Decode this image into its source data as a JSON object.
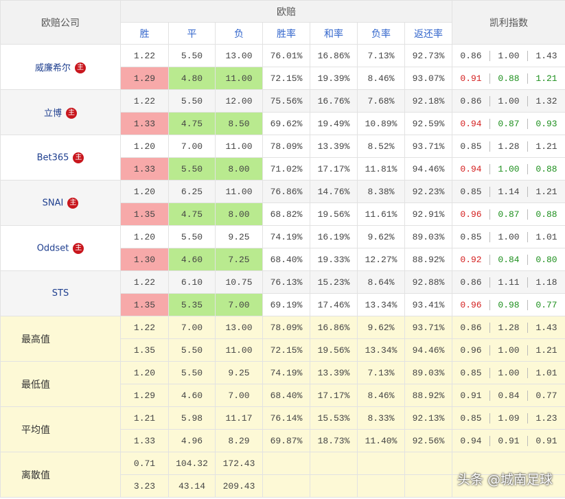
{
  "header": {
    "company": "欧赔公司",
    "odds": "欧赔",
    "kelly": "凯利指数",
    "columns": [
      "胜",
      "平",
      "负",
      "胜率",
      "和率",
      "负率",
      "返还率"
    ]
  },
  "companies": [
    {
      "name": "威廉希尔",
      "badge": "主",
      "rows": [
        {
          "odds": [
            "1.22",
            "5.50",
            "13.00",
            "76.01%",
            "16.86%",
            "7.13%",
            "92.73%"
          ],
          "kelly": [
            "0.86",
            "1.00",
            "1.43"
          ]
        },
        {
          "odds": [
            "1.29",
            "4.80",
            "11.00",
            "72.15%",
            "19.39%",
            "8.46%",
            "93.07%"
          ],
          "kelly": [
            "0.91",
            "0.88",
            "1.21"
          ]
        }
      ]
    },
    {
      "name": "立博",
      "badge": "主",
      "rows": [
        {
          "odds": [
            "1.22",
            "5.50",
            "12.00",
            "75.56%",
            "16.76%",
            "7.68%",
            "92.18%"
          ],
          "kelly": [
            "0.86",
            "1.00",
            "1.32"
          ]
        },
        {
          "odds": [
            "1.33",
            "4.75",
            "8.50",
            "69.62%",
            "19.49%",
            "10.89%",
            "92.59%"
          ],
          "kelly": [
            "0.94",
            "0.87",
            "0.93"
          ]
        }
      ]
    },
    {
      "name": "Bet365",
      "badge": "主",
      "rows": [
        {
          "odds": [
            "1.20",
            "7.00",
            "11.00",
            "78.09%",
            "13.39%",
            "8.52%",
            "93.71%"
          ],
          "kelly": [
            "0.85",
            "1.28",
            "1.21"
          ]
        },
        {
          "odds": [
            "1.33",
            "5.50",
            "8.00",
            "71.02%",
            "17.17%",
            "11.81%",
            "94.46%"
          ],
          "kelly": [
            "0.94",
            "1.00",
            "0.88"
          ]
        }
      ]
    },
    {
      "name": "SNAI",
      "badge": "主",
      "rows": [
        {
          "odds": [
            "1.20",
            "6.25",
            "11.00",
            "76.86%",
            "14.76%",
            "8.38%",
            "92.23%"
          ],
          "kelly": [
            "0.85",
            "1.14",
            "1.21"
          ]
        },
        {
          "odds": [
            "1.35",
            "4.75",
            "8.00",
            "68.82%",
            "19.56%",
            "11.61%",
            "92.91%"
          ],
          "kelly": [
            "0.96",
            "0.87",
            "0.88"
          ]
        }
      ]
    },
    {
      "name": "Oddset",
      "badge": "主",
      "rows": [
        {
          "odds": [
            "1.20",
            "5.50",
            "9.25",
            "74.19%",
            "16.19%",
            "9.62%",
            "89.03%"
          ],
          "kelly": [
            "0.85",
            "1.00",
            "1.01"
          ]
        },
        {
          "odds": [
            "1.30",
            "4.60",
            "7.25",
            "68.40%",
            "19.33%",
            "12.27%",
            "88.92%"
          ],
          "kelly": [
            "0.92",
            "0.84",
            "0.80"
          ]
        }
      ]
    },
    {
      "name": "STS",
      "rows": [
        {
          "odds": [
            "1.22",
            "6.10",
            "10.75",
            "76.13%",
            "15.23%",
            "8.64%",
            "92.88%"
          ],
          "kelly": [
            "0.86",
            "1.11",
            "1.18"
          ]
        },
        {
          "odds": [
            "1.35",
            "5.35",
            "7.00",
            "69.19%",
            "17.46%",
            "13.34%",
            "93.41%"
          ],
          "kelly": [
            "0.96",
            "0.98",
            "0.77"
          ]
        }
      ]
    }
  ],
  "stats": [
    {
      "label": "最高值",
      "rows": [
        {
          "odds": [
            "1.22",
            "7.00",
            "13.00",
            "78.09%",
            "16.86%",
            "9.62%",
            "93.71%"
          ],
          "kelly": [
            "0.86",
            "1.28",
            "1.43"
          ]
        },
        {
          "odds": [
            "1.35",
            "5.50",
            "11.00",
            "72.15%",
            "19.56%",
            "13.34%",
            "94.46%"
          ],
          "kelly": [
            "0.96",
            "1.00",
            "1.21"
          ]
        }
      ]
    },
    {
      "label": "最低值",
      "rows": [
        {
          "odds": [
            "1.20",
            "5.50",
            "9.25",
            "74.19%",
            "13.39%",
            "7.13%",
            "89.03%"
          ],
          "kelly": [
            "0.85",
            "1.00",
            "1.01"
          ]
        },
        {
          "odds": [
            "1.29",
            "4.60",
            "7.00",
            "68.40%",
            "17.17%",
            "8.46%",
            "88.92%"
          ],
          "kelly": [
            "0.91",
            "0.84",
            "0.77"
          ]
        }
      ]
    },
    {
      "label": "平均值",
      "rows": [
        {
          "odds": [
            "1.21",
            "5.98",
            "11.17",
            "76.14%",
            "15.53%",
            "8.33%",
            "92.13%"
          ],
          "kelly": [
            "0.85",
            "1.09",
            "1.23"
          ]
        },
        {
          "odds": [
            "1.33",
            "4.96",
            "8.29",
            "69.87%",
            "18.73%",
            "11.40%",
            "92.56%"
          ],
          "kelly": [
            "0.94",
            "0.91",
            "0.91"
          ]
        }
      ]
    },
    {
      "label": "离散值",
      "rows": [
        {
          "odds": [
            "0.71",
            "104.32",
            "172.43"
          ]
        },
        {
          "odds": [
            "3.23",
            "43.14",
            "209.43"
          ]
        }
      ]
    }
  ],
  "watermark": "头条 @城南足球"
}
